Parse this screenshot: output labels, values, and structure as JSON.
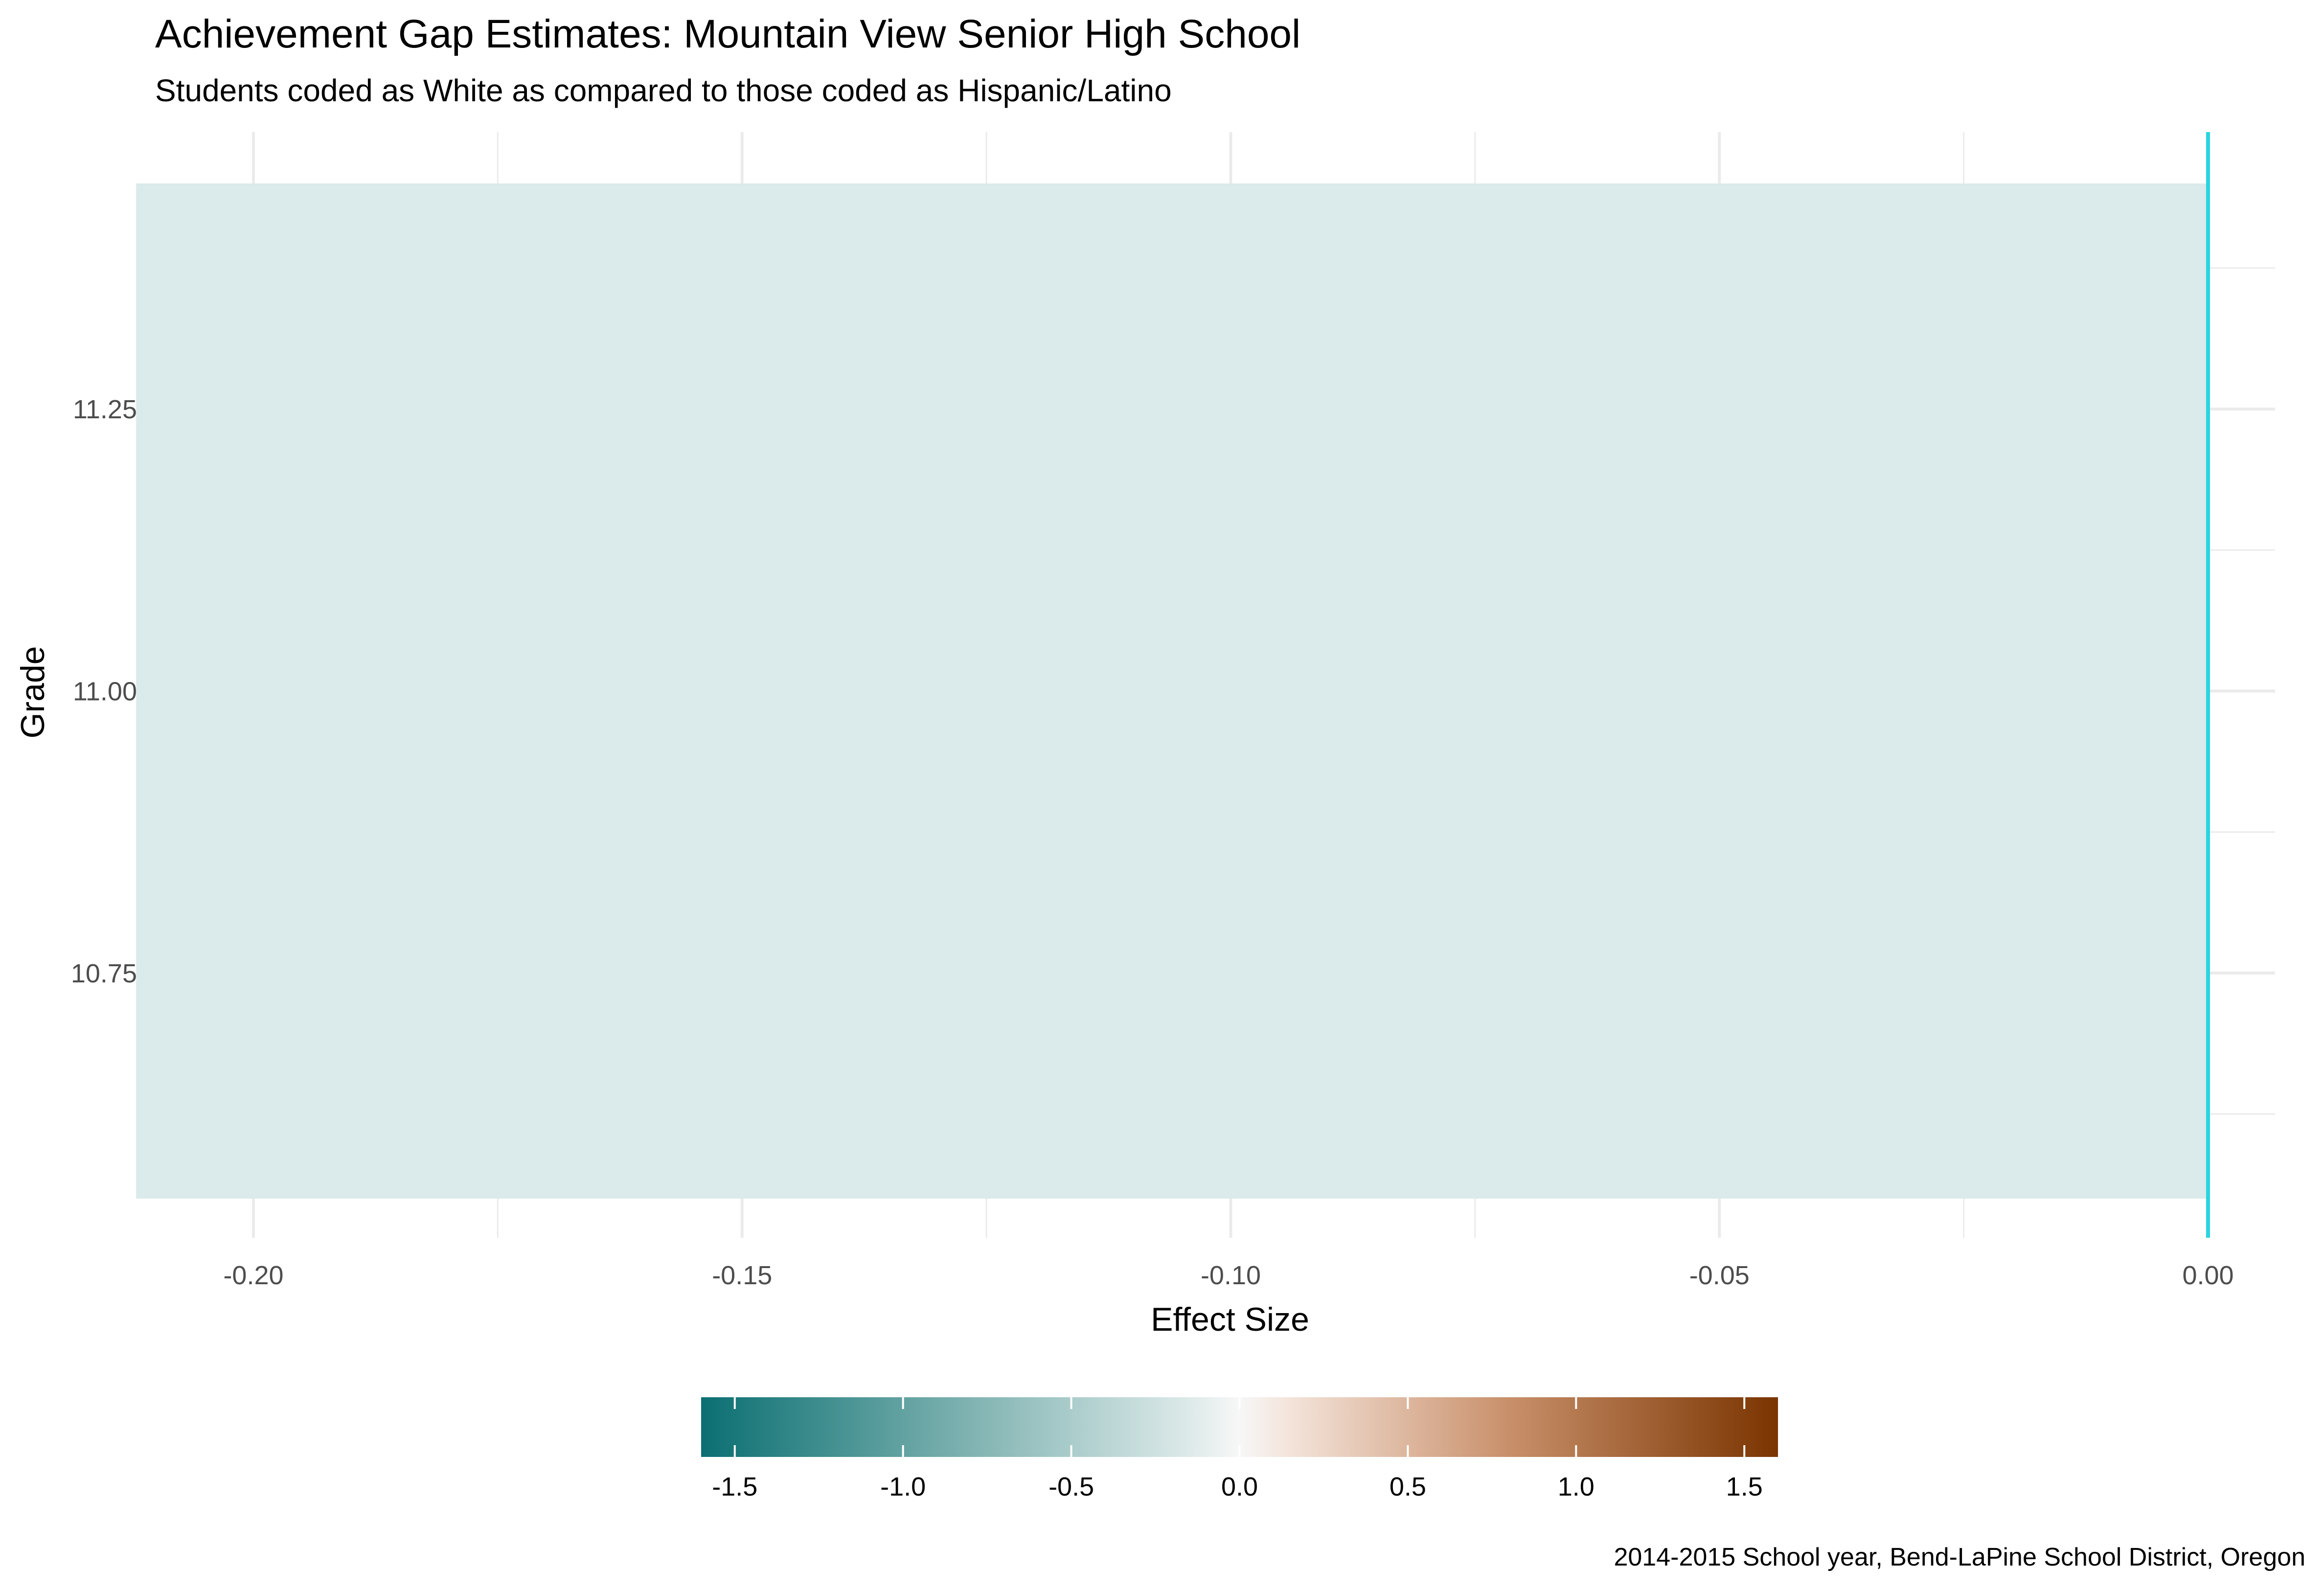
{
  "chart_data": {
    "type": "bar",
    "orientation": "horizontal",
    "title": "Achievement Gap Estimates: Mountain View Senior High School",
    "subtitle": "Students coded as White as compared to those coded as Hispanic/Latino",
    "caption": "2014-2015 School year, Bend-LaPine School District, Oregon",
    "xlabel": "Effect Size",
    "ylabel": "Grade",
    "xlim": [
      -0.2125,
      0.0
    ],
    "ylim": [
      10.55,
      11.45
    ],
    "x_ticks": [
      -0.2,
      -0.15,
      -0.1,
      -0.05,
      0.0
    ],
    "x_tick_labels": [
      "-0.20",
      "-0.15",
      "-0.10",
      "-0.05",
      "0.00"
    ],
    "y_ticks": [
      10.75,
      11.0,
      11.25
    ],
    "y_tick_labels": [
      "10.75",
      "11.00",
      "11.25"
    ],
    "bars": [
      {
        "grade": 11,
        "value": -0.212,
        "fill": "#dbeaea"
      }
    ],
    "reference_line": {
      "x": 0.0,
      "color": "#2ad4df"
    },
    "grid": true,
    "legend": {
      "type": "colorbar",
      "position": "bottom",
      "range": [
        -1.6,
        1.6
      ],
      "ticks": [
        -1.5,
        -1.0,
        -0.5,
        0.0,
        0.5,
        1.0,
        1.5
      ],
      "tick_labels": [
        "-1.5",
        "-1.0",
        "-0.5",
        "0.0",
        "0.5",
        "1.0",
        "1.5"
      ],
      "colors": [
        "#01665e",
        "#35978f",
        "#80cdc1",
        "#c7eae5",
        "#f5f5f5",
        "#f6e8c3",
        "#dfc27d",
        "#bf812d",
        "#8c510a",
        "#543005"
      ]
    }
  }
}
